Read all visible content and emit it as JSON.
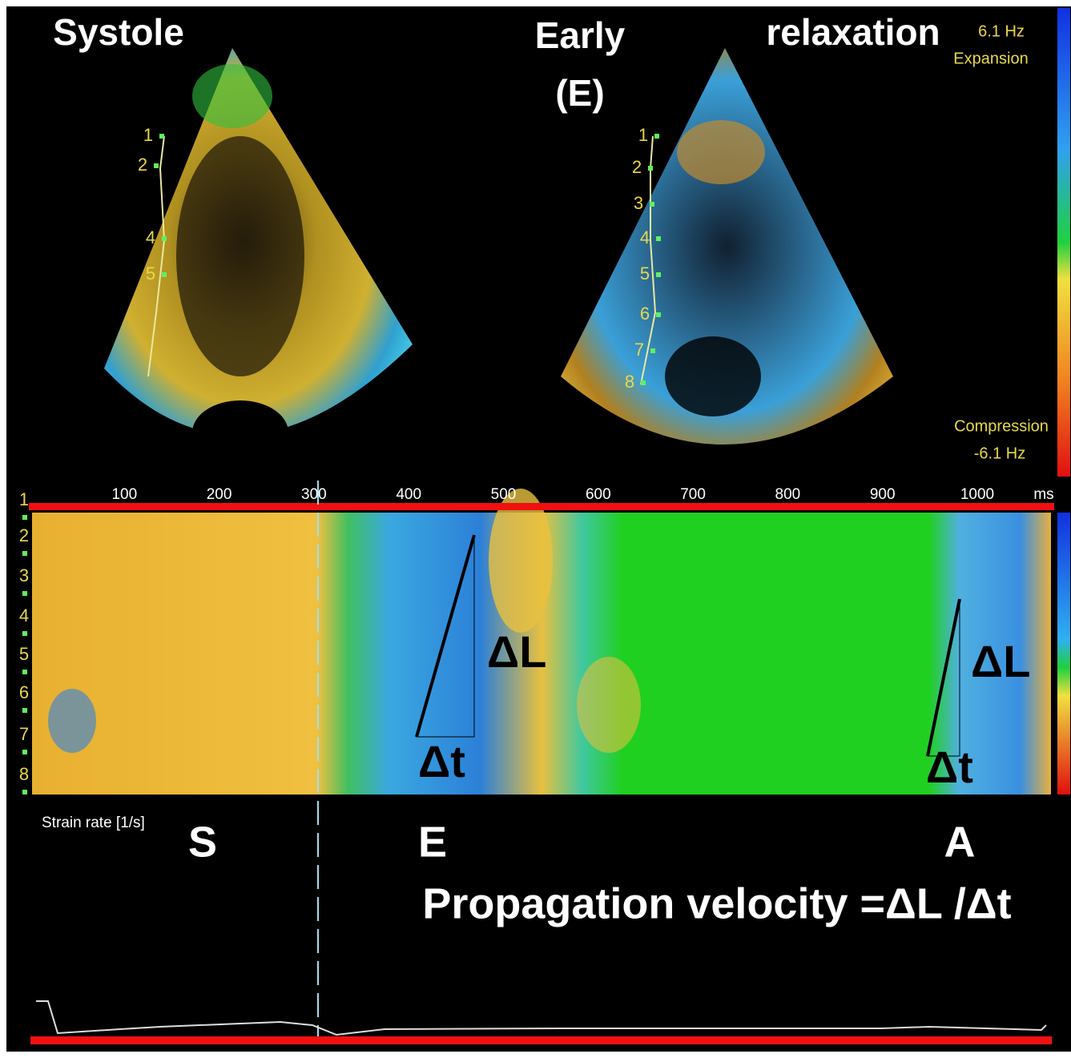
{
  "echo": {
    "systole_label": "Systole",
    "early_label": "Early",
    "e_label": "(E)",
    "relaxation_label": "relaxation",
    "left_markers": [
      "1",
      "2",
      "4",
      "5"
    ],
    "right_markers": [
      "1",
      "2",
      "3",
      "4",
      "5",
      "6",
      "7",
      "8"
    ]
  },
  "color_scale": {
    "max": "6.1 Hz",
    "max_label": "Expansion",
    "min_label": "Compression",
    "min": "-6.1 Hz"
  },
  "time_axis": {
    "ticks": [
      100,
      200,
      300,
      400,
      500,
      600,
      700,
      800,
      900,
      1000
    ],
    "unit": "ms"
  },
  "segments": [
    "1",
    "2",
    "3",
    "4",
    "5",
    "6",
    "7",
    "8"
  ],
  "mmode": {
    "delta_l": [
      "ΔL",
      "ΔL"
    ],
    "delta_t": [
      "Δt",
      "Δt"
    ]
  },
  "trace": {
    "label": "Strain rate [1/s]",
    "phases": [
      "S",
      "E",
      "A"
    ],
    "formula": "Propagation velocity =ΔL /Δt"
  }
}
